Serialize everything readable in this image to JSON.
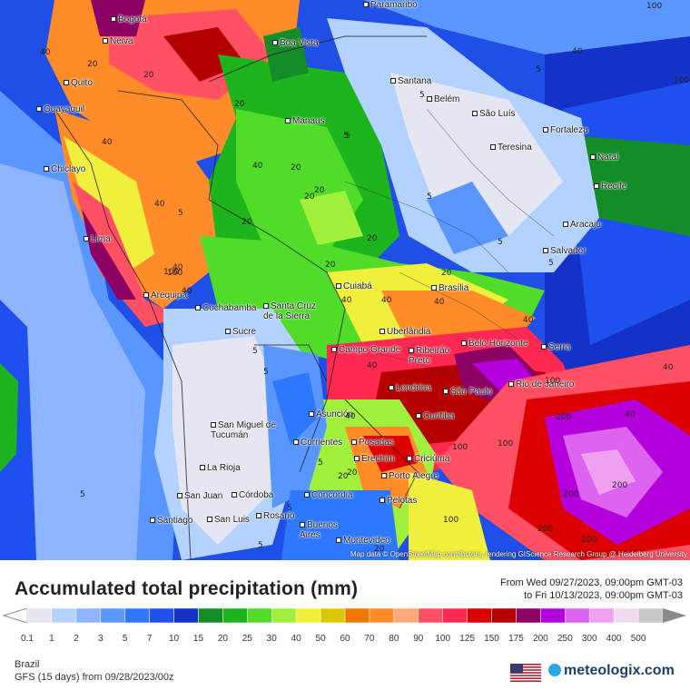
{
  "map": {
    "attribution": "Map data © OpenStreetMap contributors, rendering GIScience Research Group @ Heidelberg University",
    "cities": [
      "Paramaribo",
      "Bogotá",
      "Neiva",
      "Boa Vista",
      "Quito",
      "Guayaquil",
      "Santana",
      "Belém",
      "São Luís",
      "Manaus",
      "Fortaleza",
      "Teresina",
      "Natal",
      "Chiclayo",
      "Recife",
      "Aracaju",
      "Lima",
      "Salvador",
      "Brasília",
      "Cuiabá",
      "Arequipa",
      "Cochabamba",
      "Santa Cruz de la Sierra",
      "Uberlândia",
      "Serra",
      "Sucre",
      "Belo Horizonte",
      "Campo Grande",
      "Ribeirão Preto",
      "Rio de Janeiro",
      "Londrina",
      "São Paulo",
      "Asunción",
      "Curitiba",
      "San Miguel de Tucumán",
      "Corrientes",
      "Posadas",
      "Erechim",
      "Criciúma",
      "La Rioja",
      "Porto Alegre",
      "San Juan",
      "Córdoba",
      "Concordia",
      "Pelotas",
      "Santiago",
      "San Luis",
      "Rosario",
      "Buenos Aires",
      "Montevideo"
    ],
    "iso_labels": [
      "100",
      "100",
      "40",
      "20",
      "40",
      "20",
      "5",
      "5",
      "40",
      "20",
      "20",
      "40",
      "5",
      "5",
      "40",
      "5",
      "40",
      "20",
      "40",
      "5",
      "100",
      "40",
      "20",
      "40",
      "100",
      "5",
      "5",
      "20",
      "40",
      "40",
      "20",
      "40",
      "200",
      "40",
      "40",
      "5",
      "100",
      "100",
      "200",
      "200",
      "200",
      "100",
      "5",
      "20",
      "20",
      "20",
      "5",
      "20",
      "20",
      "5",
      "5",
      "5",
      "40",
      "100",
      "200"
    ]
  },
  "legend": {
    "title": "Accumulated total precipitation (mm)",
    "from": "From Wed 09/27/2023, 09:00pm GMT-03",
    "to": "to Fri 10/13/2023, 09:00pm GMT-03",
    "scale_values": [
      "0.1",
      "1",
      "2",
      "3",
      "5",
      "7",
      "10",
      "15",
      "20",
      "25",
      "30",
      "40",
      "50",
      "60",
      "70",
      "80",
      "90",
      "100",
      "125",
      "150",
      "175",
      "200",
      "250",
      "300",
      "400",
      "500"
    ],
    "scale_colors": [
      "#e6e6f2",
      "#b4d2ff",
      "#8cb4ff",
      "#5a96ff",
      "#2d78ff",
      "#1e50f0",
      "#1432c8",
      "#148c28",
      "#1eb41e",
      "#50dc28",
      "#a0f03c",
      "#f0f03c",
      "#dcc800",
      "#f07800",
      "#ff8c28",
      "#ffaa78",
      "#ff5064",
      "#ff2850",
      "#dc0000",
      "#b40000",
      "#8c0064",
      "#b400dc",
      "#dc64f0",
      "#f0a0f0",
      "#f0dcf0",
      "#c8c8c8"
    ]
  },
  "footer": {
    "region": "Brazil",
    "model": "GFS (15 days) from  09/28/2023/00z",
    "brand": "meteologix.com"
  }
}
